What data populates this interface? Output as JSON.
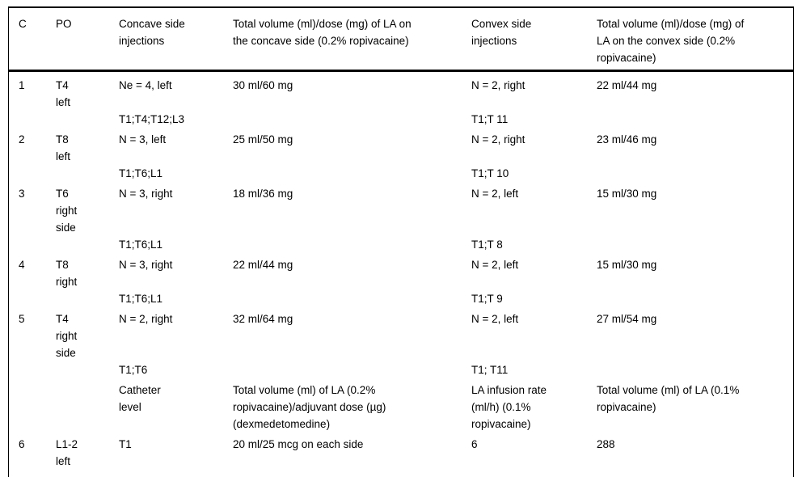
{
  "table": {
    "columns": [
      {
        "id": "c",
        "label": "C"
      },
      {
        "id": "po",
        "label": "PO"
      },
      {
        "id": "concave_injections",
        "label": "Concave side\ninjections"
      },
      {
        "id": "concave_volume",
        "label": "Total volume (ml)/dose (mg) of LA on\nthe concave side (0.2% ropivacaine)"
      },
      {
        "id": "convex_injections",
        "label": "Convex side\ninjections"
      },
      {
        "id": "convex_volume",
        "label": "Total volume (ml)/dose (mg) of\nLA on the convex side (0.2%\nropivacaine)"
      }
    ],
    "rows": [
      {
        "id": "case-1",
        "cells": [
          "1",
          "T4\nleft",
          "Ne = 4, left\n\nT1;T4;T12;L3",
          "30 ml/60 mg",
          "N = 2, right\n\nT1;T 11",
          "22 ml/44 mg"
        ]
      },
      {
        "id": "case-2",
        "cells": [
          "2",
          "T8\nleft",
          "N = 3, left\n\nT1;T6;L1",
          "25 ml/50 mg",
          "N = 2, right\n\nT1;T 10",
          "23 ml/46 mg"
        ]
      },
      {
        "id": "case-3",
        "cells": [
          "3",
          "T6\nright\nside",
          "N = 3, right\n\n\nT1;T6;L1",
          "18 ml/36 mg",
          "N = 2, left\n\n\nT1;T 8",
          "15 ml/30 mg"
        ]
      },
      {
        "id": "case-4",
        "cells": [
          "4",
          "T8\nright",
          "N = 3, right\n\nT1;T6;L1",
          "22 ml/44 mg",
          "N = 2, left\n\nT1;T 9",
          "15 ml/30 mg"
        ]
      },
      {
        "id": "case-5",
        "cells": [
          "5",
          "T4\nright\nside",
          "N = 2, right\n\n\nT1;T6",
          "32 ml/64 mg",
          "N = 2, left\n\n\nT1; T11",
          "27 ml/54 mg"
        ]
      },
      {
        "id": "subheader",
        "cells": [
          "",
          "",
          "Catheter\nlevel",
          "Total volume (ml) of LA (0.2%\nropivacaine)/adjuvant dose (µg)\n(dexmedetomedine)",
          "LA infusion rate\n(ml/h) (0.1%\nropivacaine)",
          "Total volume (ml) of LA (0.1%\nropivacaine)"
        ]
      },
      {
        "id": "case-6",
        "cells": [
          "6",
          "L1-2\nleft",
          "T1",
          "20 ml/25 mcg on each side",
          "6",
          "288"
        ]
      }
    ]
  }
}
